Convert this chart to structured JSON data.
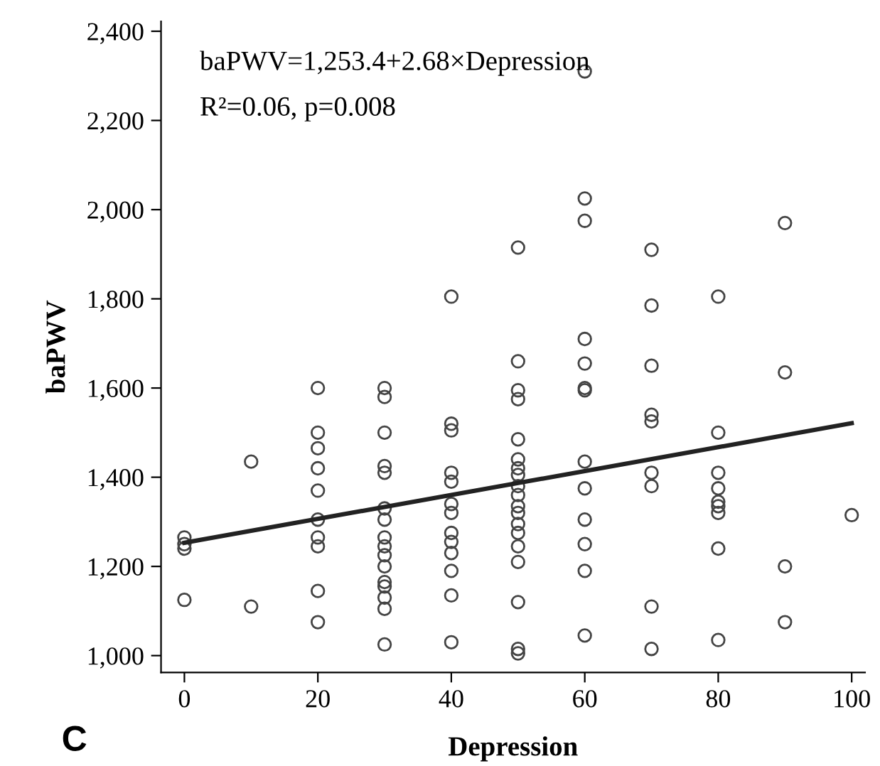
{
  "chart_data": {
    "type": "scatter",
    "xlabel": "Depression",
    "ylabel": "baPWV",
    "annotations": [
      "baPWV=1,253.4+2.68×Depression",
      "R²=0.06, p=0.008",
      "C"
    ],
    "series": [
      {
        "color": "#444444",
        "marker": "circle",
        "x": [
          0,
          0,
          0,
          0,
          10,
          10,
          20,
          20,
          20,
          20,
          20,
          20,
          20,
          20,
          20,
          20,
          30,
          30,
          30,
          30,
          30,
          30,
          30,
          30,
          30,
          30,
          30,
          30,
          30,
          30,
          30,
          30,
          40,
          40,
          40,
          40,
          40,
          40,
          40,
          40,
          40,
          40,
          40,
          40,
          40,
          50,
          50,
          50,
          50,
          50,
          50,
          50,
          50,
          50,
          50,
          50,
          50,
          50,
          50,
          50,
          50,
          50,
          50,
          50,
          60,
          60,
          60,
          60,
          60,
          60,
          60,
          60,
          60,
          60,
          60,
          60,
          60,
          70,
          70,
          70,
          70,
          70,
          70,
          70,
          70,
          70,
          80,
          80,
          80,
          80,
          80,
          80,
          80,
          80,
          80,
          90,
          90,
          90,
          90,
          100
        ],
        "values": [
          1265,
          1250,
          1240,
          1125,
          1435,
          1110,
          1600,
          1500,
          1465,
          1420,
          1370,
          1305,
          1265,
          1245,
          1145,
          1075,
          1600,
          1580,
          1500,
          1425,
          1410,
          1330,
          1305,
          1265,
          1245,
          1225,
          1200,
          1165,
          1155,
          1130,
          1105,
          1025,
          1805,
          1520,
          1505,
          1410,
          1390,
          1340,
          1320,
          1275,
          1255,
          1230,
          1190,
          1135,
          1030,
          1915,
          1660,
          1595,
          1575,
          1485,
          1440,
          1420,
          1405,
          1380,
          1360,
          1335,
          1320,
          1295,
          1275,
          1245,
          1210,
          1120,
          1015,
          1005,
          2310,
          2025,
          1975,
          1710,
          1655,
          1600,
          1595,
          1435,
          1375,
          1305,
          1250,
          1190,
          1045,
          1910,
          1785,
          1650,
          1540,
          1525,
          1410,
          1380,
          1110,
          1015,
          1805,
          1500,
          1410,
          1375,
          1345,
          1335,
          1320,
          1240,
          1035,
          1970,
          1635,
          1200,
          1075,
          1315
        ]
      },
      {
        "type": "line",
        "color": "#222222",
        "marker": "none",
        "x": [
          0,
          100
        ],
        "values": [
          1253,
          1521
        ]
      }
    ],
    "xlim": [
      -3.5,
      102
    ],
    "ylim": [
      962,
      2422
    ],
    "xticks": [
      0,
      20,
      40,
      60,
      80,
      100
    ],
    "yticks": [
      {
        "value": 1000,
        "label": "1,000"
      },
      {
        "value": 1200,
        "label": "1,200"
      },
      {
        "value": 1400,
        "label": "1,400"
      },
      {
        "value": 1600,
        "label": "1,600"
      },
      {
        "value": 1800,
        "label": "1,800"
      },
      {
        "value": 2000,
        "label": "2,000"
      },
      {
        "value": 2200,
        "label": "2,200"
      },
      {
        "value": 2400,
        "label": "2,400"
      }
    ],
    "grid": false,
    "legend": false
  }
}
